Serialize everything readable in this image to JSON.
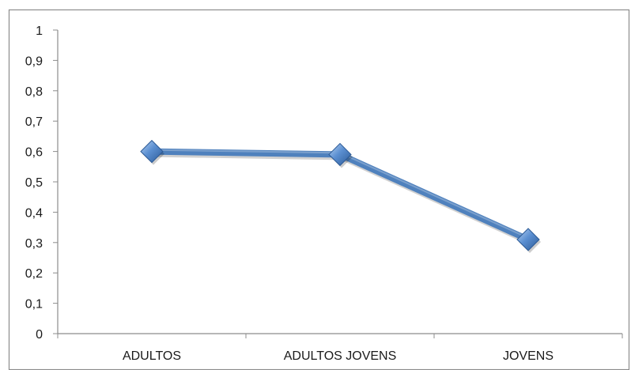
{
  "chart_data": {
    "type": "line",
    "title": "",
    "xlabel": "",
    "ylabel": "",
    "categories": [
      "ADULTOS",
      "ADULTOS JOVENS",
      "JOVENS"
    ],
    "series": [
      {
        "values": [
          0.6,
          0.59,
          0.31
        ],
        "color": "#4f81bd"
      }
    ],
    "ylim": [
      0,
      1
    ],
    "yticks": [
      0,
      0.1,
      0.2,
      0.3,
      0.4,
      0.5,
      0.6,
      0.7,
      0.8,
      0.9,
      1
    ],
    "ytick_labels": [
      "0",
      "0,1",
      "0,2",
      "0,3",
      "0,4",
      "0,5",
      "0,6",
      "0,7",
      "0,8",
      "0,9",
      "1"
    ],
    "grid": false,
    "legend": "none",
    "marker": "diamond"
  }
}
